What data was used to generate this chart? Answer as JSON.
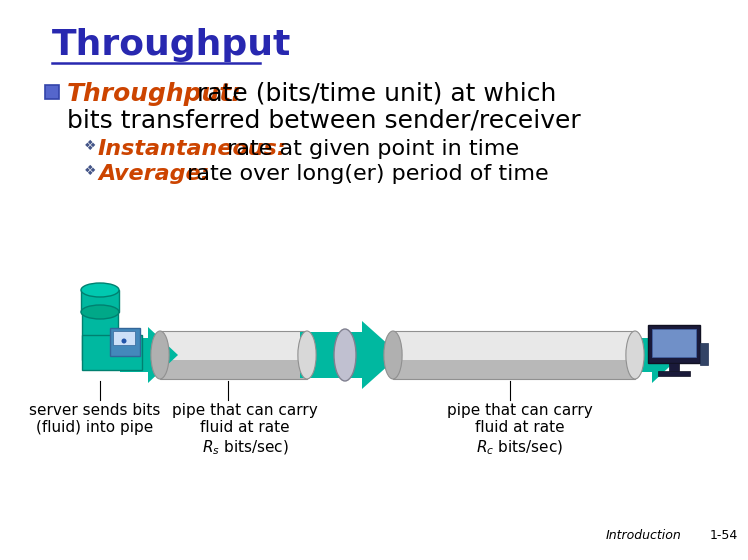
{
  "background_color": "#ffffff",
  "title": "Throughput",
  "title_color": "#2828b0",
  "title_fontsize": 26,
  "bullet_label": "Throughput:",
  "bullet_label_color": "#cc4400",
  "bullet_body": " rate (bits/time unit) at which",
  "bullet_body2": "bits transferred between sender/receiver",
  "sub1_label": "Instantaneous:",
  "sub1_label_color": "#cc4400",
  "sub1_body": " rate at given point in time",
  "sub2_label": "Average:",
  "sub2_label_color": "#cc4400",
  "sub2_body": " rate over long(er) period of time",
  "arrow_color": "#00b8a0",
  "pipe_fill": "#d8d8d8",
  "pipe_edge": "#909090",
  "label1_line1": "server sends bits",
  "label1_line2": "(fluid) into pipe",
  "label2_line1": "pipe that can carry",
  "label2_line2": "fluid at rate",
  "label2_line3": "R_s bits/sec)",
  "label3_line1": "pipe that can carry",
  "label3_line2": "fluid at rate",
  "label3_line3": "R_c bits/sec)",
  "footer_left": "Introduction",
  "footer_right": "1-54",
  "main_fs": 18,
  "sub_fs": 16,
  "label_fs": 11
}
